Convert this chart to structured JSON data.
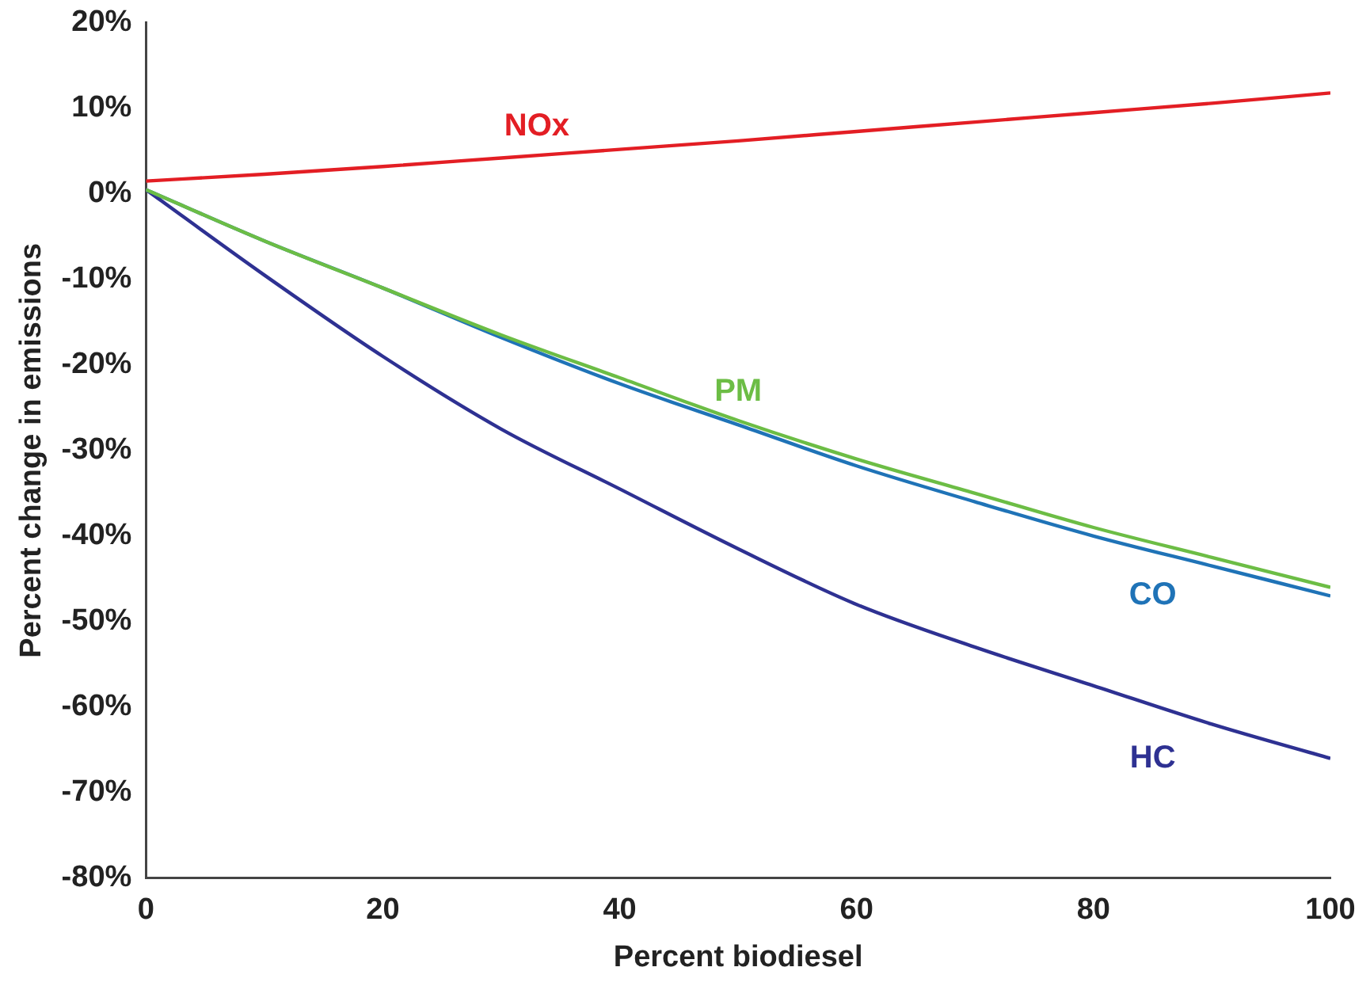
{
  "chart_data": {
    "type": "line",
    "xlabel": "Percent biodiesel",
    "ylabel": "Percent change in emissions",
    "x": [
      0,
      10,
      20,
      30,
      40,
      50,
      60,
      70,
      80,
      90,
      100
    ],
    "series": [
      {
        "name": "NOx",
        "color": "#e31e24",
        "values": [
          1.5,
          2.3,
          3.2,
          4.2,
          5.2,
          6.2,
          7.3,
          8.4,
          9.5,
          10.6,
          11.8
        ]
      },
      {
        "name": "PM",
        "color": "#6cbd45",
        "values": [
          0.5,
          -5.5,
          -11,
          -16.5,
          -21.5,
          -26.5,
          -31,
          -35,
          -39,
          -42.5,
          -46
        ]
      },
      {
        "name": "CO",
        "color": "#1f73b7",
        "values": [
          0.5,
          -5.5,
          -11,
          -16.8,
          -22.2,
          -27,
          -31.8,
          -36,
          -40,
          -43.5,
          -47
        ]
      },
      {
        "name": "HC",
        "color": "#2e3192",
        "values": [
          0.5,
          -9.5,
          -19,
          -27.5,
          -34.5,
          -41.5,
          -48,
          -53,
          -57.5,
          -62,
          -66
        ]
      }
    ],
    "xlim": [
      0,
      100
    ],
    "xticks": [
      0,
      20,
      40,
      60,
      80,
      100
    ],
    "ylim": [
      -80,
      20
    ],
    "yticks": [
      {
        "value": -80,
        "label": "-80%"
      },
      {
        "value": -70,
        "label": "-70%"
      },
      {
        "value": -60,
        "label": "-60%"
      },
      {
        "value": -50,
        "label": "-50%"
      },
      {
        "value": -40,
        "label": "-40%"
      },
      {
        "value": -30,
        "label": "-30%"
      },
      {
        "value": -20,
        "label": "-20%"
      },
      {
        "value": -10,
        "label": "-10%"
      },
      {
        "value": 0,
        "label": "0%"
      },
      {
        "value": 10,
        "label": "10%"
      },
      {
        "value": 20,
        "label": "20%"
      }
    ],
    "grid": false,
    "legend": false,
    "marker": "none",
    "line_style": "solid"
  }
}
